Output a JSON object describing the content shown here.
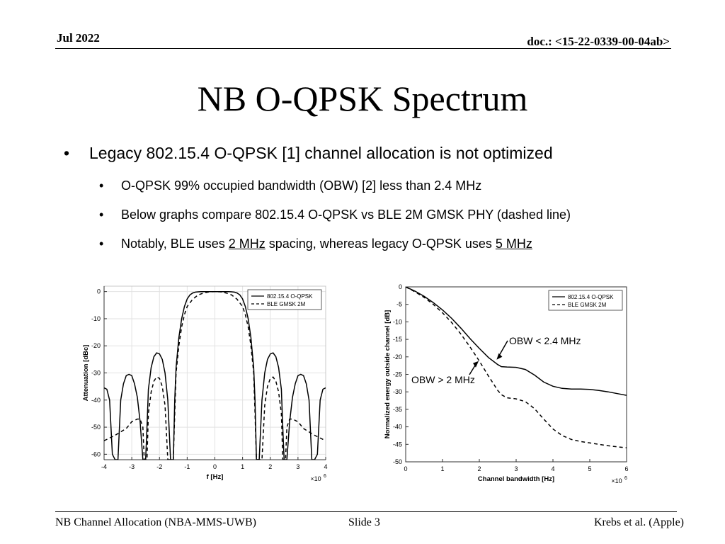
{
  "header": {
    "date": "Jul 2022",
    "doc": "doc.: <15-22-0339-00-04ab>"
  },
  "title": "NB O-QPSK Spectrum",
  "bullets": {
    "main": "Legacy 802.15.4 O-QPSK [1] channel allocation is not optimized",
    "sub1": "O-QPSK 99% occupied bandwidth (OBW) [2] less than 2.4 MHz",
    "sub2": "Below graphs compare 802.15.4 O-QPSK vs BLE 2M GMSK PHY (dashed line)",
    "sub3_pre": "Notably, BLE uses ",
    "sub3_link1": "2 MHz",
    "sub3_mid": " spacing, whereas legacy O-QPSK uses ",
    "sub3_link2": "5 MHz"
  },
  "chart_data": [
    {
      "type": "line",
      "xlabel": "f [Hz]",
      "ylabel": "Attenuation [dBc]",
      "x_exponent": "6",
      "xlim": [
        -4,
        4
      ],
      "ylim": [
        -62,
        2
      ],
      "xticks": [
        "-4",
        "-3",
        "-2",
        "-1",
        "0",
        "1",
        "2",
        "3",
        "4"
      ],
      "yticks": [
        "0",
        "-10",
        "-20",
        "-30",
        "-40",
        "-50",
        "-60"
      ],
      "grid": true,
      "legend_position": "top-right",
      "series": [
        {
          "name": "802.15.4 O-QPSK",
          "style": "solid",
          "x": [
            -4,
            -3.9,
            -3.8,
            -3.7,
            -3.6,
            -3.5,
            -3.4,
            -3.3,
            -3.2,
            -3.1,
            -3.0,
            -2.9,
            -2.8,
            -2.7,
            -2.6,
            -2.55,
            -2.5,
            -2.45,
            -2.4,
            -2.3,
            -2.2,
            -2.1,
            -2.0,
            -1.9,
            -1.8,
            -1.7,
            -1.6,
            -1.55,
            -1.5,
            -1.45,
            -1.4,
            -1.3,
            -1.2,
            -1.1,
            -1.0,
            -0.9,
            -0.8,
            -0.7,
            -0.6,
            -0.5,
            -0.4,
            -0.3,
            -0.2,
            -0.1,
            0,
            0.1,
            0.2,
            0.3,
            0.4,
            0.5,
            0.6,
            0.7,
            0.8,
            0.9,
            1.0,
            1.1,
            1.2,
            1.3,
            1.4,
            1.45,
            1.5,
            1.55,
            1.6,
            1.7,
            1.8,
            1.9,
            2.0,
            2.1,
            2.2,
            2.3,
            2.4,
            2.45,
            2.5,
            2.55,
            2.6,
            2.7,
            2.8,
            2.9,
            3.0,
            3.1,
            3.2,
            3.3,
            3.4,
            3.5,
            3.6,
            3.7,
            3.8,
            3.9,
            4.0
          ],
          "y": [
            -35.5,
            -36,
            -40,
            -60,
            -62,
            -62,
            -40,
            -34,
            -31,
            -30.5,
            -31,
            -34,
            -39,
            -48,
            -62,
            -62,
            -62,
            -50,
            -36,
            -28,
            -24,
            -22.6,
            -23,
            -25,
            -30,
            -40,
            -62,
            -62,
            -62,
            -40,
            -28,
            -17,
            -10,
            -5.5,
            -2.7,
            -1.2,
            -0.5,
            -0.2,
            -0.1,
            0,
            0,
            0,
            0,
            0,
            0,
            0,
            0,
            0,
            0,
            0,
            -0.1,
            -0.2,
            -0.5,
            -1.2,
            -2.7,
            -5.5,
            -10,
            -17,
            -28,
            -40,
            -62,
            -62,
            -62,
            -40,
            -30,
            -25,
            -23,
            -22.6,
            -24,
            -28,
            -36,
            -50,
            -62,
            -62,
            -62,
            -48,
            -39,
            -34,
            -31,
            -30.5,
            -31,
            -34,
            -40,
            -62,
            -62,
            -60,
            -40,
            -36,
            -35.5
          ]
        },
        {
          "name": "BLE GMSK 2M",
          "style": "dashed",
          "x": [
            -4,
            -3.6,
            -3.2,
            -3.0,
            -2.8,
            -2.7,
            -2.6,
            -2.55,
            -2.5,
            -2.45,
            -2.4,
            -2.3,
            -2.2,
            -2.1,
            -2.0,
            -1.9,
            -1.8,
            -1.7,
            -1.6,
            -1.55,
            -1.5,
            -1.45,
            -1.4,
            -1.3,
            -1.2,
            -1.1,
            -1.0,
            -0.8,
            -0.6,
            -0.4,
            -0.2,
            0,
            0.2,
            0.4,
            0.6,
            0.8,
            1.0,
            1.1,
            1.2,
            1.3,
            1.4,
            1.45,
            1.5,
            1.55,
            1.6,
            1.7,
            1.8,
            1.9,
            2.0,
            2.1,
            2.2,
            2.3,
            2.4,
            2.45,
            2.5,
            2.55,
            2.6,
            2.7,
            2.8,
            3.0,
            3.2,
            3.6,
            4.0
          ],
          "y": [
            -55,
            -53,
            -50.5,
            -48,
            -47,
            -47,
            -50,
            -62,
            -62,
            -62,
            -45,
            -37,
            -33,
            -31.5,
            -32,
            -35,
            -42,
            -62,
            -62,
            -62,
            -62,
            -45,
            -30,
            -20,
            -13,
            -8.5,
            -5.5,
            -2.8,
            -1.2,
            -0.5,
            -0.1,
            0,
            -0.1,
            -0.5,
            -1.2,
            -2.8,
            -5.5,
            -8.5,
            -13,
            -20,
            -30,
            -45,
            -62,
            -62,
            -62,
            -62,
            -42,
            -35,
            -32,
            -31.5,
            -33,
            -37,
            -45,
            -62,
            -62,
            -62,
            -50,
            -47,
            -47,
            -48,
            -50.5,
            -53,
            -55
          ]
        }
      ]
    },
    {
      "type": "line",
      "xlabel": "Channel bandwidth [Hz]",
      "ylabel": "Normalized energy outside channel [dB]",
      "x_exponent": "6",
      "xlim": [
        0,
        6
      ],
      "ylim": [
        -50,
        0
      ],
      "xticks": [
        "0",
        "1",
        "2",
        "3",
        "4",
        "5",
        "6"
      ],
      "yticks": [
        "0",
        "-5",
        "-10",
        "-15",
        "-20",
        "-25",
        "-30",
        "-35",
        "-40",
        "-45",
        "-50"
      ],
      "grid": false,
      "legend_position": "top-right",
      "annotations": [
        "OBW < 2.4 MHz",
        "OBW > 2 MHz"
      ],
      "series": [
        {
          "name": "802.15.4 O-QPSK",
          "style": "solid",
          "x": [
            0,
            0.25,
            0.5,
            0.75,
            1.0,
            1.25,
            1.5,
            1.75,
            2.0,
            2.25,
            2.5,
            2.6,
            2.75,
            3.0,
            3.25,
            3.5,
            3.75,
            4.0,
            4.25,
            4.5,
            4.75,
            5.0,
            5.25,
            5.5,
            5.75,
            6.0
          ],
          "y": [
            0,
            -1.2,
            -2.7,
            -4.5,
            -6.6,
            -9,
            -11.8,
            -14.8,
            -17.6,
            -20.2,
            -22.2,
            -22.8,
            -22.9,
            -23,
            -23.6,
            -25.2,
            -27.2,
            -28.4,
            -29,
            -29.2,
            -29.2,
            -29.3,
            -29.6,
            -30,
            -30.5,
            -31
          ]
        },
        {
          "name": "BLE GMSK 2M",
          "style": "dashed",
          "x": [
            0,
            0.25,
            0.5,
            0.75,
            1.0,
            1.25,
            1.5,
            1.75,
            2.0,
            2.25,
            2.5,
            2.6,
            2.75,
            3.0,
            3.25,
            3.5,
            3.75,
            4.0,
            4.25,
            4.5,
            4.75,
            5.0,
            5.25,
            5.5,
            5.75,
            6.0
          ],
          "y": [
            0,
            -1.4,
            -3,
            -5,
            -7.4,
            -10.2,
            -13.5,
            -17.2,
            -21.2,
            -25.5,
            -29.6,
            -30.8,
            -31.7,
            -32,
            -32.8,
            -34.8,
            -37.8,
            -40.6,
            -42.5,
            -43.6,
            -44.2,
            -44.6,
            -45,
            -45.4,
            -45.7,
            -46
          ]
        }
      ]
    }
  ],
  "footer": {
    "left": "NB Channel Allocation (NBA-MMS-UWB)",
    "center": "Slide 3",
    "right": "Krebs et al. (Apple)"
  }
}
